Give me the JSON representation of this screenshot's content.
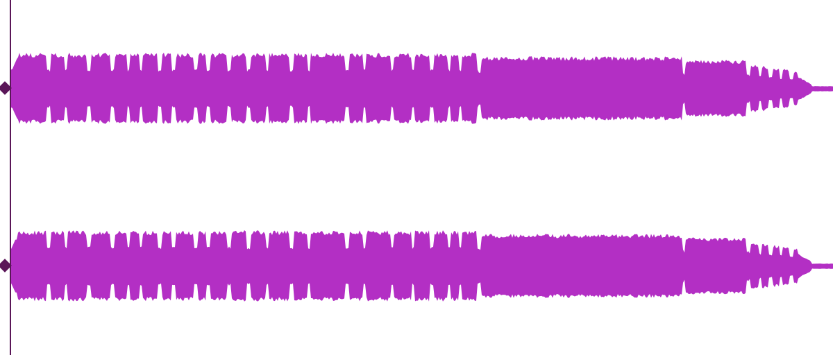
{
  "waveform": {
    "channels": [
      {
        "id": "left"
      },
      {
        "id": "right"
      }
    ],
    "colors": {
      "background": "#ffffff",
      "waveform": "#b32fc4",
      "playhead": "#5a1658"
    },
    "icons": {
      "playhead_handle": "diamond-handle-icon"
    }
  }
}
